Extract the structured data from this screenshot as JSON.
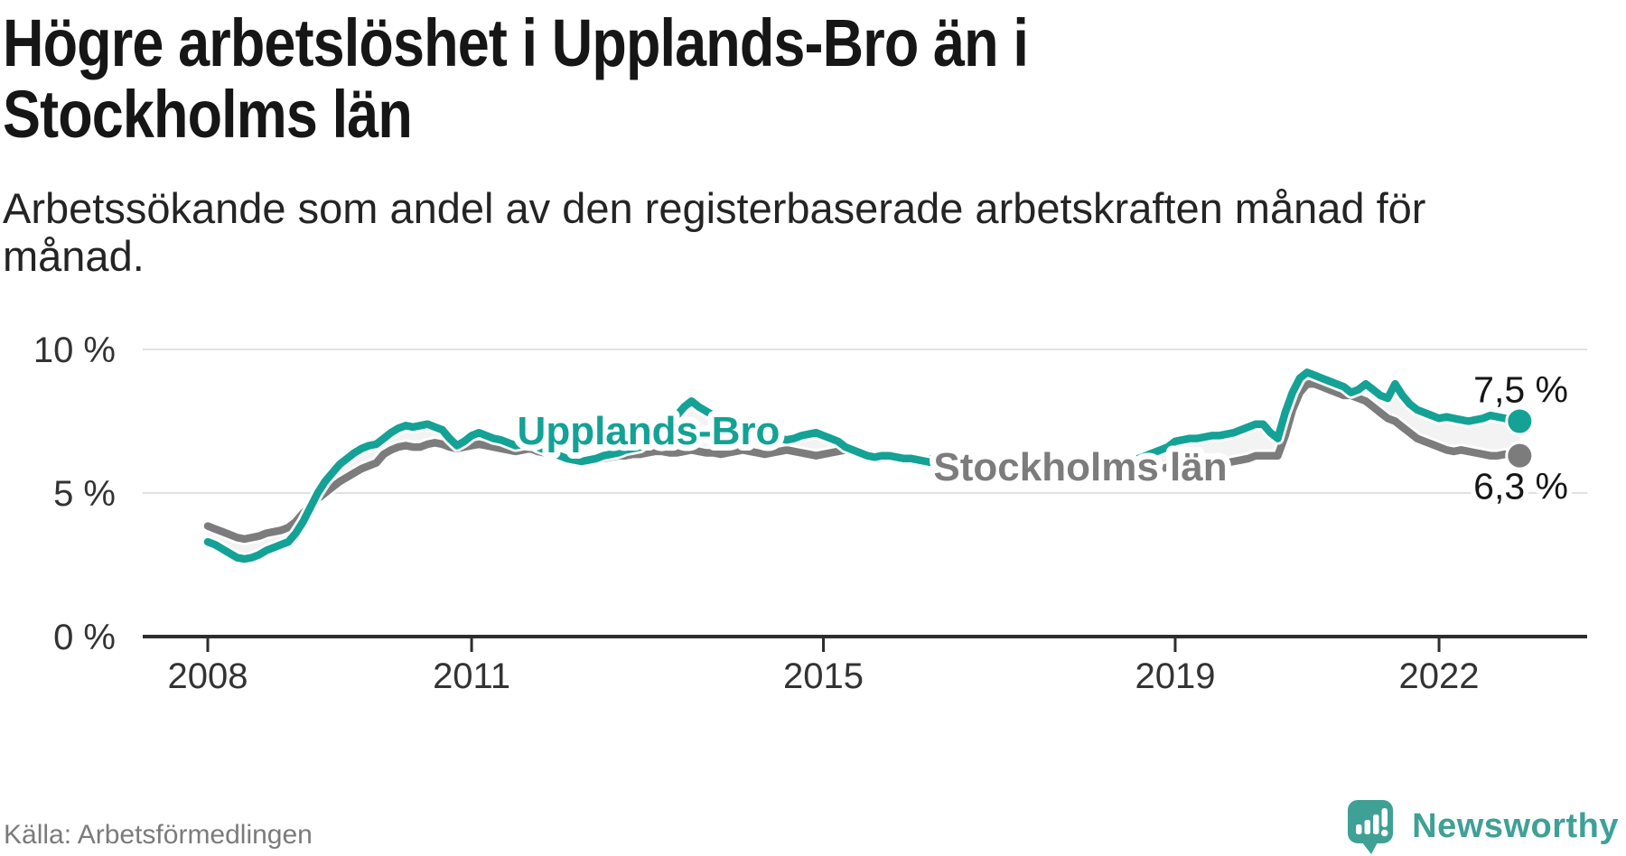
{
  "header": {
    "title_lines": [
      "Högre arbetslöshet i Upplands-Bro än i",
      "Stockholms län"
    ],
    "subtitle_lines": [
      "Arbetssökande som andel av den registerbaserade arbetskraften månad för",
      "månad."
    ]
  },
  "footer": {
    "source": "Källa: Arbetsförmedlingen",
    "brand": "Newsworthy"
  },
  "logo": {
    "color": "#3fa096"
  },
  "chart_data": {
    "type": "line",
    "title": "Högre arbetslöshet i Upplands-Bro än i Stockholms län",
    "ylabel": "",
    "xlabel": "",
    "unit": "%",
    "grid": "horizontal",
    "legend": "inline-labels",
    "x_unit": "month",
    "x_start_year": 2008,
    "x_range": [
      "2008-01",
      "2022-12"
    ],
    "x_tick_years": [
      2008,
      2011,
      2015,
      2019,
      2022
    ],
    "x_tick_labels": [
      "2008",
      "2011",
      "2015",
      "2019",
      "2022"
    ],
    "y_axis": {
      "range": [
        0,
        10.5
      ],
      "ticks": [
        {
          "label": "0 %",
          "value": 0
        },
        {
          "label": "5 %",
          "value": 5
        },
        {
          "label": "10 %",
          "value": 10
        }
      ]
    },
    "colors": {
      "upplands_bro": "#13a295",
      "stockholms_lan": "#7c7c7c",
      "between_fill": "#f3f3f3",
      "value_label": "#161616"
    },
    "series": [
      {
        "name": "Stockholms län",
        "color_key": "stockholms_lan",
        "end_label": "6,3 %",
        "end_value": 6.3,
        "values": [
          3.85,
          3.75,
          3.65,
          3.55,
          3.45,
          3.4,
          3.45,
          3.5,
          3.6,
          3.65,
          3.7,
          3.8,
          4.0,
          4.3,
          4.55,
          4.8,
          5.0,
          5.2,
          5.4,
          5.55,
          5.7,
          5.85,
          5.95,
          6.05,
          6.35,
          6.5,
          6.6,
          6.65,
          6.6,
          6.6,
          6.7,
          6.75,
          6.7,
          6.6,
          6.55,
          6.6,
          6.65,
          6.7,
          6.65,
          6.6,
          6.55,
          6.5,
          6.45,
          6.5,
          6.55,
          6.45,
          6.4,
          6.35,
          6.3,
          6.25,
          6.2,
          6.15,
          6.1,
          6.15,
          6.2,
          6.25,
          6.3,
          6.3,
          6.35,
          6.35,
          6.4,
          6.45,
          6.45,
          6.4,
          6.4,
          6.45,
          6.5,
          6.45,
          6.4,
          6.4,
          6.35,
          6.4,
          6.45,
          6.5,
          6.45,
          6.4,
          6.35,
          6.4,
          6.45,
          6.5,
          6.45,
          6.4,
          6.35,
          6.3,
          6.35,
          6.4,
          6.45,
          6.5,
          6.45,
          6.4,
          6.35,
          6.3,
          6.35,
          6.3,
          6.25,
          6.2,
          6.25,
          6.2,
          6.15,
          6.2,
          6.15,
          6.1,
          6.05,
          6.0,
          6.05,
          6.1,
          6.05,
          6.0,
          6.0,
          5.95,
          5.9,
          5.95,
          5.9,
          5.85,
          5.9,
          5.95,
          6.0,
          6.05,
          6.0,
          6.0,
          5.95,
          5.9,
          5.85,
          5.8,
          5.85,
          5.8,
          5.85,
          5.9,
          5.95,
          5.9,
          5.85,
          5.9,
          5.95,
          6.0,
          6.0,
          6.05,
          6.1,
          6.1,
          6.0,
          6.05,
          6.1,
          6.15,
          6.2,
          6.3,
          6.3,
          6.3,
          6.3,
          7.0,
          7.9,
          8.5,
          8.8,
          8.8,
          8.7,
          8.6,
          8.5,
          8.4,
          8.4,
          8.3,
          8.2,
          8.0,
          7.8,
          7.6,
          7.5,
          7.3,
          7.1,
          6.9,
          6.8,
          6.7,
          6.6,
          6.5,
          6.45,
          6.5,
          6.45,
          6.4,
          6.35,
          6.3,
          6.3,
          6.35,
          6.3,
          6.3
        ]
      },
      {
        "name": "Upplands-Bro",
        "color_key": "upplands_bro",
        "end_label": "7,5 %",
        "end_value": 7.5,
        "values": [
          3.3,
          3.2,
          3.05,
          2.9,
          2.75,
          2.7,
          2.75,
          2.85,
          3.0,
          3.1,
          3.2,
          3.3,
          3.6,
          4.0,
          4.5,
          5.0,
          5.4,
          5.7,
          6.0,
          6.2,
          6.4,
          6.55,
          6.65,
          6.7,
          6.9,
          7.1,
          7.25,
          7.35,
          7.3,
          7.35,
          7.4,
          7.3,
          7.2,
          6.9,
          6.65,
          6.8,
          7.0,
          7.1,
          7.0,
          6.9,
          6.85,
          6.75,
          6.65,
          6.7,
          6.75,
          6.6,
          6.5,
          6.4,
          6.3,
          6.2,
          6.15,
          6.1,
          6.15,
          6.2,
          6.3,
          6.35,
          6.4,
          6.5,
          6.55,
          6.6,
          6.8,
          7.0,
          7.2,
          7.5,
          7.7,
          8.0,
          8.2,
          8.0,
          7.85,
          7.7,
          7.6,
          7.5,
          7.4,
          7.3,
          7.35,
          7.3,
          7.25,
          7.2,
          6.9,
          6.85,
          6.9,
          7.0,
          7.05,
          7.1,
          7.0,
          6.9,
          6.8,
          6.6,
          6.5,
          6.4,
          6.3,
          6.25,
          6.3,
          6.3,
          6.25,
          6.2,
          6.2,
          6.15,
          6.1,
          6.05,
          6.0,
          5.95,
          5.9,
          5.9,
          5.95,
          6.0,
          5.95,
          5.9,
          5.9,
          5.85,
          5.8,
          5.8,
          5.75,
          5.8,
          5.85,
          5.9,
          5.95,
          6.0,
          6.0,
          6.05,
          6.0,
          5.95,
          5.9,
          5.9,
          5.95,
          6.0,
          6.1,
          6.2,
          6.3,
          6.4,
          6.5,
          6.6,
          6.8,
          6.85,
          6.9,
          6.9,
          6.95,
          7.0,
          7.0,
          7.05,
          7.1,
          7.2,
          7.3,
          7.4,
          7.4,
          7.1,
          6.9,
          7.8,
          8.5,
          9.0,
          9.2,
          9.1,
          9.0,
          8.9,
          8.8,
          8.7,
          8.5,
          8.6,
          8.8,
          8.6,
          8.4,
          8.3,
          8.8,
          8.4,
          8.1,
          7.9,
          7.8,
          7.7,
          7.6,
          7.65,
          7.6,
          7.55,
          7.5,
          7.55,
          7.6,
          7.7,
          7.65,
          7.6,
          7.55,
          7.5
        ]
      }
    ]
  }
}
